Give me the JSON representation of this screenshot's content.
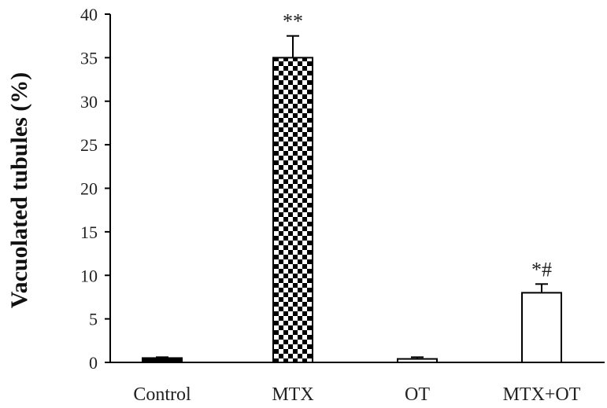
{
  "chart_data": {
    "type": "bar",
    "title": "",
    "xlabel": "",
    "ylabel": "Vacuolated tubules (%)",
    "ylim": [
      0,
      40
    ],
    "yticks": [
      0,
      5,
      10,
      15,
      20,
      25,
      30,
      35,
      40
    ],
    "grid": false,
    "categories": [
      "Control",
      "MTX",
      "OT",
      "MTX+OT"
    ],
    "values": [
      0.5,
      35,
      0.4,
      8
    ],
    "errors": [
      0.1,
      2.5,
      0.2,
      1.0
    ],
    "annotations": [
      "",
      "**",
      "",
      "*#"
    ],
    "fills": [
      "solid",
      "checkerboard",
      "open",
      "open"
    ],
    "colors": {
      "bar_stroke": "#000000",
      "solid": "#000000",
      "open": "#ffffff",
      "checker": "#000000"
    }
  }
}
